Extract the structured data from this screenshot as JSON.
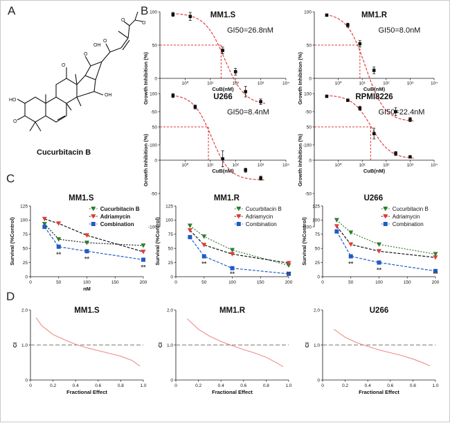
{
  "panels": {
    "a": "A",
    "b": "B",
    "c": "C",
    "d": "D"
  },
  "molecule": {
    "name": "Cucurbitacin B",
    "atoms": [
      "HO",
      "O",
      "O",
      "O",
      "OH",
      "O",
      "O",
      "O",
      "OH"
    ]
  },
  "colors": {
    "curve": "#e03030",
    "cucurbitacin": "#2e7d32",
    "adriamycin": "#e53935",
    "combination": "#1e5bc6",
    "ci_line": "#f08a8a",
    "ref_line": "#909090"
  },
  "chart_data": [
    {
      "panel": "B",
      "type": "scatter",
      "title": "MM1.S",
      "annotation": "GI50=26.8nM",
      "gi50": 26.8,
      "xlabel": "CuB(nM)",
      "ylabel": "Growth Inhibition (%)",
      "xscale": "log",
      "xlim": [
        0.1,
        10000
      ],
      "ylim": [
        -100,
        100
      ],
      "xticks": [
        "10⁰",
        "10¹",
        "10²",
        "10³",
        "10⁴"
      ],
      "yticks": [
        "100",
        "50",
        "0",
        "-50",
        "-100"
      ],
      "x": [
        0.33,
        1.6,
        31,
        100,
        250,
        1000
      ],
      "y": [
        96,
        93,
        42,
        10,
        -20,
        -35
      ],
      "yerr": [
        3,
        6,
        5,
        5,
        8,
        4
      ],
      "fit": {
        "top": 98,
        "bottom": -40,
        "logx50": 1.57,
        "hill": 1.1
      }
    },
    {
      "panel": "B",
      "type": "scatter",
      "title": "MM1.R",
      "annotation": "GI50=8.0nM",
      "gi50": 8.0,
      "xlabel": "CuB(nM)",
      "ylabel": "Growth Inhibition (%)",
      "xscale": "log",
      "xlim": [
        0.1,
        10000
      ],
      "ylim": [
        -100,
        100
      ],
      "xticks": [
        "10⁰",
        "10¹",
        "10²",
        "10³",
        "10⁴"
      ],
      "yticks": [
        "100",
        "50",
        "0",
        "-50",
        "-100"
      ],
      "x": [
        0.33,
        2.5,
        8,
        31,
        250,
        1000
      ],
      "y": [
        95,
        80,
        52,
        12,
        -50,
        -62
      ],
      "yerr": [
        2,
        3,
        5,
        5,
        6,
        3
      ],
      "fit": {
        "top": 98,
        "bottom": -65,
        "logx50": 1.15,
        "hill": 1.1
      }
    },
    {
      "panel": "B",
      "type": "scatter",
      "title": "U266",
      "annotation": "GI50=8.4nM",
      "gi50": 8.4,
      "xlabel": "CuB(nM)",
      "ylabel": "Growth Inhibition (%)",
      "xscale": "log",
      "xlim": [
        0.1,
        10000
      ],
      "ylim": [
        -100,
        100
      ],
      "xticks": [
        "10⁰",
        "10¹",
        "10²",
        "10³",
        "10⁴"
      ],
      "yticks": [
        "100",
        "50",
        "0",
        "-50",
        "-100"
      ],
      "x": [
        0.33,
        2.5,
        31,
        250,
        1000
      ],
      "y": [
        97,
        80,
        2,
        -15,
        -27
      ],
      "yerr": [
        3,
        3,
        12,
        3,
        3
      ],
      "fit": {
        "top": 99,
        "bottom": -30,
        "logx50": 1.05,
        "hill": 1.2
      }
    },
    {
      "panel": "B",
      "type": "scatter",
      "title": "RPMI8226",
      "annotation": "GI50=22.4nM",
      "gi50": 22.4,
      "xlabel": "CuB(nM)",
      "ylabel": "Growth Inhibition (%)",
      "xscale": "log",
      "xlim": [
        0.1,
        10000
      ],
      "ylim": [
        -100,
        100
      ],
      "xticks": [
        "10⁰",
        "10¹",
        "10²",
        "10³",
        "10⁴"
      ],
      "yticks": [
        "100",
        "50",
        "0",
        "-50",
        "-100"
      ],
      "x": [
        0.33,
        2.5,
        8,
        31,
        250,
        1000
      ],
      "y": [
        96,
        90,
        78,
        40,
        10,
        5
      ],
      "yerr": [
        2,
        2,
        3,
        8,
        3,
        2
      ],
      "fit": {
        "top": 98,
        "bottom": 2,
        "logx50": 1.38,
        "hill": 1.1
      }
    },
    {
      "panel": "C",
      "type": "line",
      "title": "MM1.S",
      "xlabel": "nM",
      "ylabel": "Survival (%Control)",
      "xlim": [
        0,
        200
      ],
      "ylim": [
        0,
        125
      ],
      "xticks": [
        "0",
        "50",
        "100",
        "150",
        "200"
      ],
      "yticks": [
        "0",
        "25",
        "50",
        "75",
        "100",
        "125"
      ],
      "x": [
        25,
        50,
        100,
        200
      ],
      "series": [
        {
          "name": "Cucurbitacin B",
          "values": [
            93,
            66,
            60,
            55
          ]
        },
        {
          "name": "Adriamycin",
          "values": [
            102,
            94,
            73,
            44
          ]
        },
        {
          "name": "Combination",
          "values": [
            88,
            53,
            45,
            30
          ]
        }
      ],
      "significance": [
        "**",
        "**",
        "**"
      ],
      "legend_bold": true
    },
    {
      "panel": "C",
      "type": "line",
      "title": "MM1.R",
      "xlabel": "",
      "ylabel": "Survival (%Control)",
      "xlim": [
        0,
        200
      ],
      "ylim": [
        0,
        125
      ],
      "xticks": [
        "0",
        "50",
        "100",
        "150",
        "200"
      ],
      "yticks": [
        "0",
        "25",
        "50",
        "75",
        "100",
        "125"
      ],
      "x": [
        25,
        50,
        100,
        200
      ],
      "series": [
        {
          "name": "Cucurbitacin B",
          "values": [
            90,
            71,
            47,
            20
          ]
        },
        {
          "name": "Adriamycin",
          "values": [
            82,
            56,
            40,
            24
          ]
        },
        {
          "name": "Combination",
          "values": [
            70,
            36,
            15,
            5
          ]
        }
      ],
      "significance": [
        "**",
        "**",
        "**"
      ],
      "legend_bold": false
    },
    {
      "panel": "C",
      "type": "line",
      "title": "U266",
      "xlabel": "",
      "ylabel": "Survival (%Control)",
      "xlim": [
        0,
        200
      ],
      "ylim": [
        0,
        125
      ],
      "xticks": [
        "0",
        "50",
        "100",
        "150",
        "200"
      ],
      "yticks": [
        "0",
        "25",
        "50",
        "75",
        "100",
        "125"
      ],
      "x": [
        25,
        50,
        100,
        200
      ],
      "series": [
        {
          "name": "Cucurbitacin B",
          "values": [
            100,
            78,
            57,
            40
          ]
        },
        {
          "name": "Adriamycin",
          "values": [
            89,
            57,
            45,
            34
          ]
        },
        {
          "name": "Combination",
          "values": [
            80,
            36,
            25,
            10
          ]
        }
      ],
      "significance": [
        "**",
        "**",
        "**"
      ],
      "legend_bold": false
    },
    {
      "panel": "D",
      "type": "line",
      "title": "MM1.S",
      "xlabel": "Fractional Effect",
      "ylabel": "CI",
      "xlim": [
        0,
        1.0
      ],
      "ylim": [
        0,
        2.0
      ],
      "xticks": [
        "0",
        "0.2",
        "0.4",
        "0.6",
        "0.8",
        "1.0"
      ],
      "yticks": [
        "0",
        "1.0",
        "2.0"
      ],
      "reference_y": 1.0,
      "x": [
        0.05,
        0.1,
        0.2,
        0.3,
        0.4,
        0.5,
        0.6,
        0.7,
        0.8,
        0.9,
        0.97
      ],
      "y": [
        1.78,
        1.55,
        1.3,
        1.15,
        1.02,
        0.92,
        0.84,
        0.76,
        0.68,
        0.56,
        0.4
      ]
    },
    {
      "panel": "D",
      "type": "line",
      "title": "MM1.R",
      "xlabel": "Fractional Effect",
      "ylabel": "CI",
      "xlim": [
        0,
        1.0
      ],
      "ylim": [
        0,
        2.0
      ],
      "xticks": [
        "0",
        "0.2",
        "0.4",
        "0.6",
        "0.8",
        "1.0"
      ],
      "yticks": [
        "0",
        "1.0",
        "2.0"
      ],
      "reference_y": 1.0,
      "x": [
        0.1,
        0.2,
        0.3,
        0.4,
        0.5,
        0.6,
        0.7,
        0.8,
        0.9,
        0.95
      ],
      "y": [
        1.75,
        1.45,
        1.25,
        1.1,
        0.98,
        0.87,
        0.77,
        0.65,
        0.48,
        0.38
      ]
    },
    {
      "panel": "D",
      "type": "line",
      "title": "U266",
      "xlabel": "Fractional Effect",
      "ylabel": "CI",
      "xlim": [
        0,
        1.0
      ],
      "ylim": [
        0,
        2.0
      ],
      "xticks": [
        "0",
        "0.2",
        "0.4",
        "0.6",
        "0.8",
        "1.0"
      ],
      "yticks": [
        "0",
        "1.0",
        "2.0"
      ],
      "reference_y": 1.0,
      "x": [
        0.1,
        0.2,
        0.3,
        0.4,
        0.5,
        0.6,
        0.7,
        0.8,
        0.9,
        0.95
      ],
      "y": [
        1.45,
        1.22,
        1.07,
        0.96,
        0.86,
        0.78,
        0.7,
        0.6,
        0.48,
        0.4
      ]
    }
  ]
}
